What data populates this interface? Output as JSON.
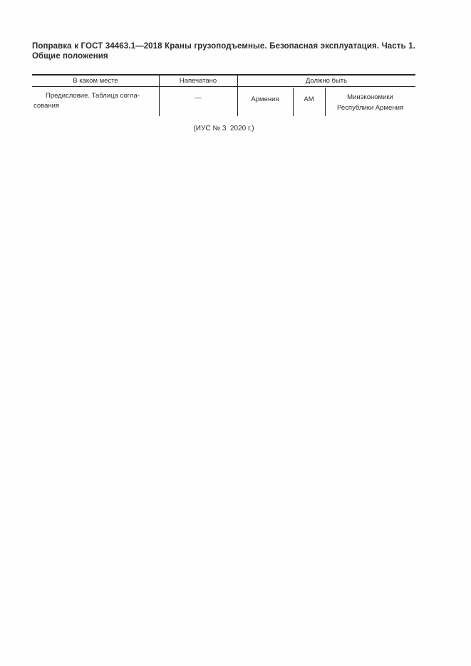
{
  "document": {
    "title_line1": "Поправка к ГОСТ 34463.1—2018 Краны грузоподъемные. Безопасная эксплуатация. Часть 1.",
    "title_line2": "Общие положения"
  },
  "correction_table": {
    "col_headers": {
      "location": "В каком месте",
      "printed": "Напечатано",
      "should_be": "Должно быть"
    },
    "row": {
      "location": "Предисловие. Таблица согла-\nсования",
      "printed": "—",
      "should_be_parts": {
        "country": "Армения",
        "code": "АМ",
        "authority": "Минэкономики\nРеспублики Армения"
      }
    }
  },
  "footer": {
    "issue_note": "(ИУС № 3  2020 г.)"
  }
}
